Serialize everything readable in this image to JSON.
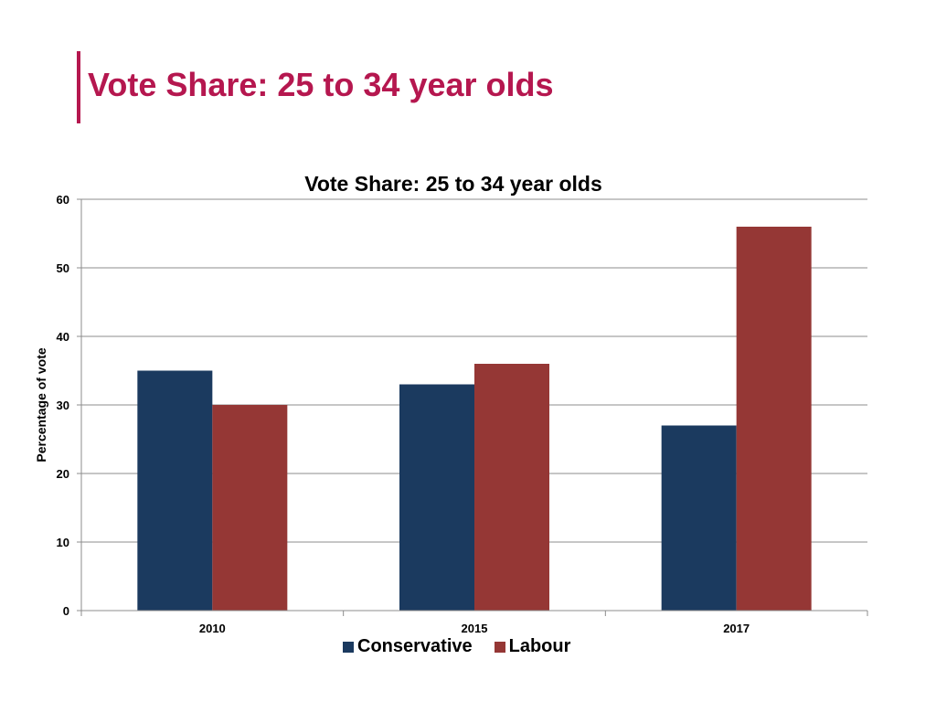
{
  "slide": {
    "title": "Vote Share: 25 to 34 year olds",
    "accent_color": "#b5174f"
  },
  "chart_data": {
    "type": "bar",
    "title": "Vote Share: 25 to 34 year olds",
    "xlabel": "",
    "ylabel": "Percentage of vote",
    "categories": [
      "2010",
      "2015",
      "2017"
    ],
    "series": [
      {
        "name": "Conservative",
        "values": [
          35,
          33,
          27
        ],
        "color": "#1b3a5f"
      },
      {
        "name": "Labour",
        "values": [
          30,
          36,
          56
        ],
        "color": "#953735"
      }
    ],
    "ylim": [
      0,
      60
    ],
    "yticks": [
      0,
      10,
      20,
      30,
      40,
      50,
      60
    ],
    "grid": true,
    "legend_position": "bottom"
  }
}
